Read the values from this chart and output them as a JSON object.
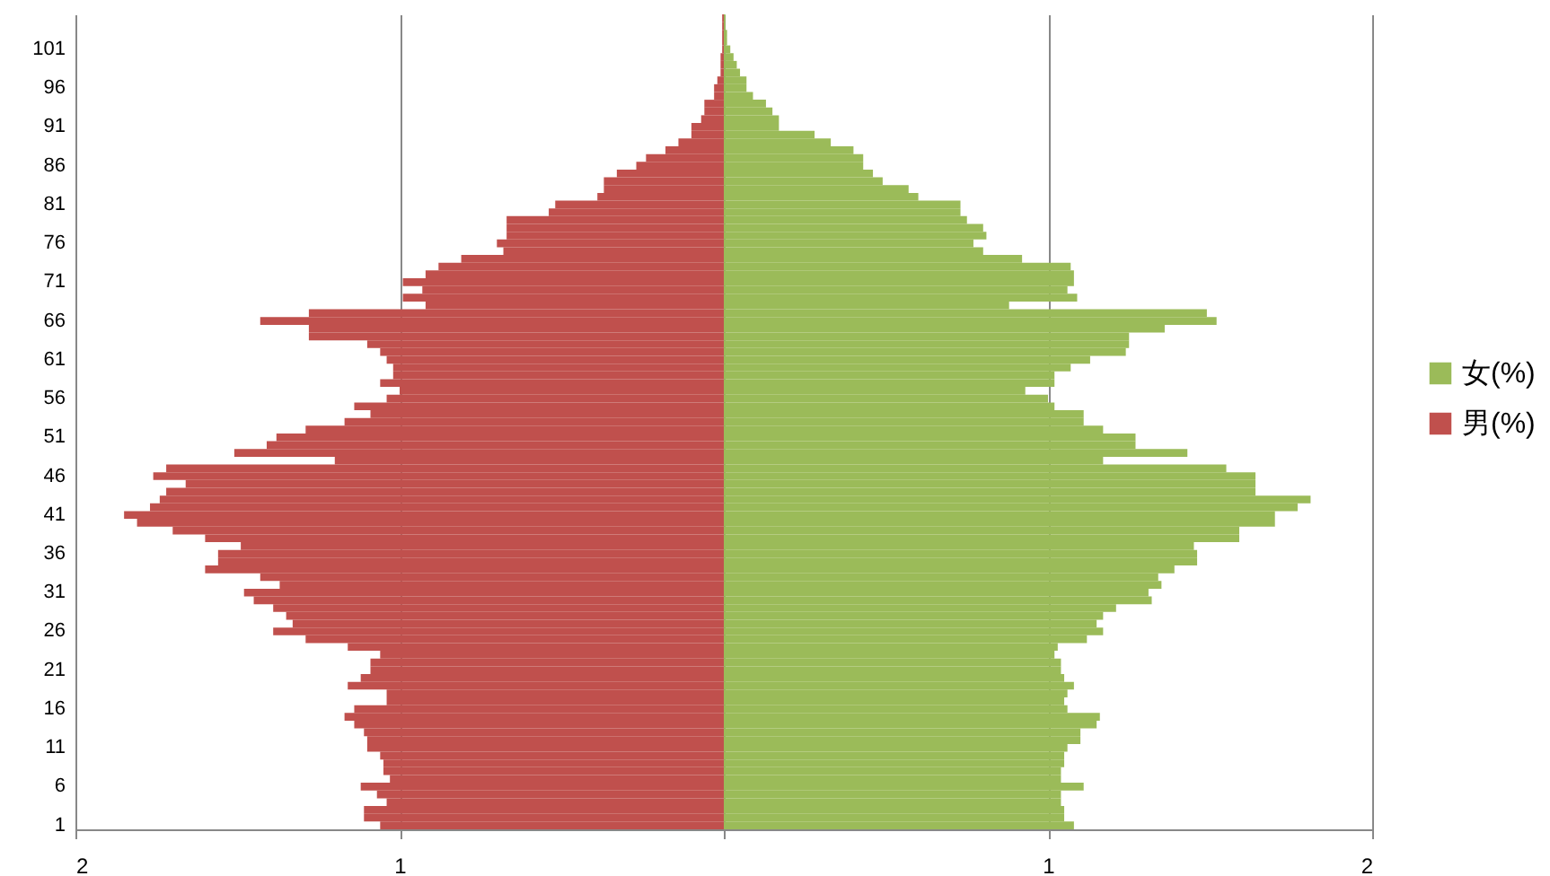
{
  "chart_data": {
    "type": "bar",
    "orientation": "horizontal",
    "categories": [
      null,
      null,
      null,
      null,
      "101",
      null,
      null,
      null,
      null,
      "96",
      null,
      null,
      null,
      null,
      "91",
      null,
      null,
      null,
      null,
      "86",
      null,
      null,
      null,
      null,
      "81",
      null,
      null,
      null,
      null,
      "76",
      null,
      null,
      null,
      null,
      "71",
      null,
      null,
      null,
      null,
      "66",
      null,
      null,
      null,
      null,
      "61",
      null,
      null,
      null,
      null,
      "56",
      null,
      null,
      null,
      null,
      "51",
      null,
      null,
      null,
      null,
      "46",
      null,
      null,
      null,
      null,
      "41",
      null,
      null,
      null,
      null,
      "36",
      null,
      null,
      null,
      null,
      "31",
      null,
      null,
      null,
      null,
      "26",
      null,
      null,
      null,
      null,
      "21",
      null,
      null,
      null,
      null,
      "16",
      null,
      null,
      null,
      null,
      "11",
      null,
      null,
      null,
      null,
      "6",
      null,
      null,
      null,
      null,
      "1"
    ],
    "xlim": [
      -2,
      2
    ],
    "xticks": [
      {
        "value": -2,
        "label": "2"
      },
      {
        "value": -1,
        "label": "1"
      },
      {
        "value": 0,
        "label": null
      },
      {
        "value": 1,
        "label": "1"
      },
      {
        "value": 2,
        "label": "2"
      }
    ],
    "grid": "x",
    "legend": "right",
    "stacked": true,
    "series": [
      {
        "name": "女(%)",
        "color": "#9bbb59",
        "values": [
          0.005,
          0.005,
          0.01,
          0.01,
          0.02,
          0.03,
          0.04,
          0.05,
          0.07,
          0.07,
          0.09,
          0.13,
          0.15,
          0.17,
          0.17,
          0.28,
          0.33,
          0.4,
          0.43,
          0.43,
          0.46,
          0.49,
          0.57,
          0.6,
          0.73,
          0.73,
          0.75,
          0.8,
          0.81,
          0.77,
          0.8,
          0.92,
          1.07,
          1.08,
          1.08,
          1.06,
          1.09,
          0.88,
          1.49,
          1.52,
          1.36,
          1.25,
          1.25,
          1.24,
          1.13,
          1.07,
          1.02,
          1.02,
          0.93,
          1.0,
          1.02,
          1.11,
          1.11,
          1.17,
          1.27,
          1.27,
          1.43,
          1.17,
          1.55,
          1.64,
          1.64,
          1.64,
          1.81,
          1.77,
          1.7,
          1.7,
          1.59,
          1.59,
          1.45,
          1.46,
          1.46,
          1.39,
          1.34,
          1.35,
          1.31,
          1.32,
          1.21,
          1.17,
          1.15,
          1.17,
          1.12,
          1.03,
          1.02,
          1.04,
          1.04,
          1.05,
          1.08,
          1.06,
          1.05,
          1.06,
          1.16,
          1.15,
          1.1,
          1.1,
          1.06,
          1.05,
          1.05,
          1.04,
          1.04,
          1.11,
          1.04,
          1.04,
          1.05,
          1.05,
          1.08
        ]
      },
      {
        "name": "男(%)",
        "color": "#c0504d",
        "values": [
          -0.005,
          -0.005,
          -0.005,
          -0.005,
          -0.005,
          -0.01,
          -0.01,
          -0.01,
          -0.02,
          -0.03,
          -0.03,
          -0.06,
          -0.06,
          -0.07,
          -0.1,
          -0.1,
          -0.14,
          -0.18,
          -0.24,
          -0.27,
          -0.33,
          -0.37,
          -0.37,
          -0.39,
          -0.52,
          -0.54,
          -0.67,
          -0.67,
          -0.67,
          -0.7,
          -0.68,
          -0.81,
          -0.88,
          -0.92,
          -0.99,
          -0.93,
          -0.99,
          -0.92,
          -1.28,
          -1.43,
          -1.28,
          -1.28,
          -1.1,
          -1.06,
          -1.04,
          -1.02,
          -1.02,
          -1.06,
          -1.0,
          -1.04,
          -1.14,
          -1.09,
          -1.17,
          -1.29,
          -1.38,
          -1.41,
          -1.51,
          -1.2,
          -1.72,
          -1.76,
          -1.66,
          -1.72,
          -1.74,
          -1.77,
          -1.85,
          -1.81,
          -1.7,
          -1.6,
          -1.49,
          -1.56,
          -1.56,
          -1.6,
          -1.43,
          -1.37,
          -1.48,
          -1.45,
          -1.39,
          -1.35,
          -1.33,
          -1.39,
          -1.29,
          -1.16,
          -1.06,
          -1.09,
          -1.09,
          -1.12,
          -1.16,
          -1.04,
          -1.04,
          -1.14,
          -1.17,
          -1.14,
          -1.11,
          -1.1,
          -1.1,
          -1.06,
          -1.05,
          -1.05,
          -1.03,
          -1.12,
          -1.07,
          -1.04,
          -1.11,
          -1.11,
          -1.06
        ]
      }
    ]
  }
}
